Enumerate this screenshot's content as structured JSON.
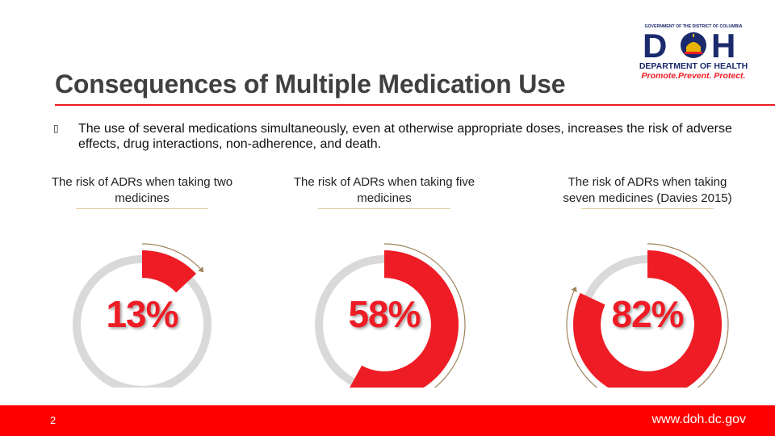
{
  "slide": {
    "title": "Consequences of Multiple Medication Use",
    "bullet_marker": "▯",
    "bullet_text": "The use of several medications simultaneously, even at otherwise appropriate doses, increases the risk of adverse effects, drug interactions, non-adherence, and death.",
    "page_number": "2",
    "footer_url": "www.doh.dc.gov"
  },
  "logo": {
    "top_line": "GOVERNMENT OF THE DISTRICT OF COLUMBIA",
    "letters": "DOH",
    "letter_d": "D",
    "letter_h": "H",
    "dept": "DEPARTMENT OF HEALTH",
    "tagline": "Promote.Prevent. Protect."
  },
  "colors": {
    "accent": "#ee1c25",
    "track": "#d9d9d9",
    "footer": "#ff0000",
    "title": "#404040",
    "arrow": "#a0825a"
  },
  "chart_data": {
    "type": "pie",
    "title": "",
    "items": [
      {
        "caption": "The risk of ADRs when taking two medicines",
        "value": 13,
        "label": "13%"
      },
      {
        "caption": "The risk of ADRs when taking five medicines",
        "value": 58,
        "label": "58%"
      },
      {
        "caption": "The risk of ADRs when taking seven medicines (Davies 2015)",
        "value": 82,
        "label": "82%"
      }
    ]
  }
}
